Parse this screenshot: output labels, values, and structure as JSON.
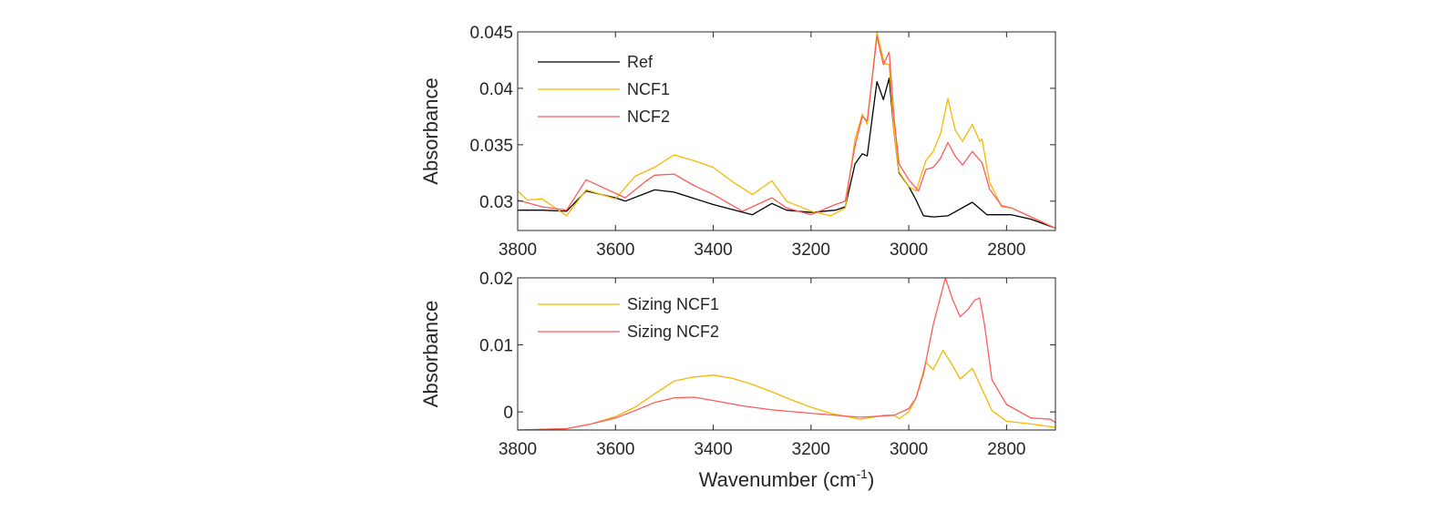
{
  "chart_data": [
    {
      "type": "line",
      "xlabel": "",
      "ylabel": "Absorbance",
      "xlim": [
        3800,
        2700
      ],
      "x_reversed": true,
      "ylim": [
        0.0274,
        0.045
      ],
      "xticks": [
        3800,
        3600,
        3400,
        3200,
        3000,
        2800
      ],
      "xtick_labels": [
        "3800",
        "3600",
        "3400",
        "3200",
        "3000",
        "2800"
      ],
      "yticks": [
        0.03,
        0.035,
        0.04,
        0.045
      ],
      "ytick_labels": [
        "0.03",
        "0.035",
        "0.04",
        "0.045"
      ],
      "grid": false,
      "legend_placement": "top-left",
      "series": [
        {
          "name": "Ref",
          "color": "#000000",
          "x": [
            3800,
            3750,
            3700,
            3660,
            3600,
            3580,
            3520,
            3480,
            3400,
            3320,
            3280,
            3250,
            3200,
            3150,
            3130,
            3110,
            3095,
            3085,
            3065,
            3052,
            3040,
            3030,
            3020,
            3000,
            2985,
            2970,
            2950,
            2920,
            2870,
            2840,
            2790,
            2750,
            2700
          ],
          "y": [
            0.0292,
            0.0292,
            0.0291,
            0.0309,
            0.0303,
            0.03,
            0.031,
            0.0308,
            0.0297,
            0.0288,
            0.0298,
            0.0292,
            0.029,
            0.0292,
            0.0295,
            0.0333,
            0.0342,
            0.034,
            0.0406,
            0.039,
            0.0409,
            0.036,
            0.0325,
            0.0313,
            0.0301,
            0.0287,
            0.0286,
            0.0287,
            0.0299,
            0.0288,
            0.0288,
            0.0284,
            0.0276
          ]
        },
        {
          "name": "NCF1",
          "color": "#F5B800",
          "x": [
            3800,
            3780,
            3750,
            3700,
            3660,
            3600,
            3560,
            3520,
            3480,
            3440,
            3400,
            3360,
            3320,
            3280,
            3250,
            3200,
            3160,
            3130,
            3110,
            3095,
            3085,
            3065,
            3050,
            3040,
            3030,
            3020,
            3000,
            2985,
            2965,
            2950,
            2935,
            2920,
            2905,
            2890,
            2870,
            2855,
            2850,
            2835,
            2810,
            2790,
            2750,
            2700
          ],
          "y": [
            0.0309,
            0.0301,
            0.0302,
            0.0287,
            0.031,
            0.0302,
            0.0322,
            0.033,
            0.0341,
            0.0336,
            0.033,
            0.0317,
            0.0306,
            0.0318,
            0.03,
            0.0291,
            0.0287,
            0.0294,
            0.0355,
            0.0377,
            0.0368,
            0.045,
            0.0422,
            0.0421,
            0.036,
            0.0326,
            0.0313,
            0.0309,
            0.0336,
            0.0344,
            0.036,
            0.0391,
            0.0363,
            0.0353,
            0.0368,
            0.0353,
            0.0355,
            0.0317,
            0.0295,
            0.0294,
            0.0286,
            0.0276
          ]
        },
        {
          "name": "NCF2",
          "color": "#FF5A5A",
          "x": [
            3800,
            3750,
            3700,
            3660,
            3620,
            3580,
            3540,
            3520,
            3480,
            3440,
            3400,
            3340,
            3280,
            3250,
            3200,
            3150,
            3130,
            3110,
            3095,
            3085,
            3065,
            3052,
            3040,
            3030,
            3020,
            3000,
            2980,
            2965,
            2950,
            2935,
            2920,
            2905,
            2890,
            2870,
            2850,
            2835,
            2810,
            2790,
            2750,
            2700
          ],
          "y": [
            0.0301,
            0.0295,
            0.0292,
            0.0319,
            0.0311,
            0.0303,
            0.0317,
            0.0323,
            0.0324,
            0.0314,
            0.0306,
            0.0291,
            0.0303,
            0.0294,
            0.0288,
            0.0297,
            0.03,
            0.0349,
            0.0375,
            0.0371,
            0.0446,
            0.0421,
            0.0432,
            0.0373,
            0.0333,
            0.0319,
            0.0309,
            0.0328,
            0.033,
            0.0338,
            0.0352,
            0.034,
            0.0332,
            0.0344,
            0.0334,
            0.0311,
            0.0296,
            0.0294,
            0.0286,
            0.0276
          ]
        }
      ]
    },
    {
      "type": "line",
      "xlabel": "Wavenumber (cm",
      "xlabel_superscript": "-1",
      "xlabel_suffix": ")",
      "ylabel": "Absorbance",
      "xlim": [
        3800,
        2700
      ],
      "x_reversed": true,
      "ylim": [
        -0.0027,
        0.02
      ],
      "xticks": [
        3800,
        3600,
        3400,
        3200,
        3000,
        2800
      ],
      "xtick_labels": [
        "3800",
        "3600",
        "3400",
        "3200",
        "3000",
        "2800"
      ],
      "yticks": [
        0,
        0.01,
        0.02
      ],
      "ytick_labels": [
        "0",
        "0.01",
        "0.02"
      ],
      "grid": false,
      "legend_placement": "top-left",
      "series": [
        {
          "name": "Sizing NCF1",
          "color": "#F5B800",
          "x": [
            3800,
            3700,
            3650,
            3600,
            3560,
            3520,
            3480,
            3440,
            3400,
            3360,
            3320,
            3280,
            3240,
            3200,
            3160,
            3100,
            3050,
            3030,
            3020,
            3000,
            2985,
            2965,
            2950,
            2930,
            2915,
            2895,
            2870,
            2850,
            2830,
            2800,
            2750,
            2700
          ],
          "y": [
            -0.0027,
            -0.0025,
            -0.0018,
            -0.0007,
            0.0007,
            0.0027,
            0.0046,
            0.0052,
            0.0055,
            0.005,
            0.0041,
            0.003,
            0.0018,
            0.0007,
            -0.0002,
            -0.0011,
            -0.0005,
            -0.0005,
            -0.001,
            0.0,
            0.0021,
            0.0074,
            0.0063,
            0.0092,
            0.0075,
            0.0049,
            0.0065,
            0.0034,
            0.0002,
            -0.0014,
            -0.0018,
            -0.0023
          ]
        },
        {
          "name": "Sizing NCF2",
          "color": "#FF5A5A",
          "x": [
            3800,
            3700,
            3650,
            3600,
            3560,
            3520,
            3480,
            3440,
            3400,
            3340,
            3280,
            3200,
            3100,
            3030,
            3000,
            2985,
            2970,
            2950,
            2925,
            2910,
            2895,
            2880,
            2865,
            2855,
            2845,
            2830,
            2800,
            2750,
            2710,
            2700
          ],
          "y": [
            -0.0027,
            -0.0025,
            -0.0018,
            -0.0009,
            0.0002,
            0.0014,
            0.0021,
            0.0022,
            0.0017,
            0.0009,
            0.0003,
            -0.0002,
            -0.0008,
            -0.0005,
            0.0005,
            0.0021,
            0.0057,
            0.013,
            0.02,
            0.0167,
            0.0142,
            0.0152,
            0.0167,
            0.017,
            0.013,
            0.0048,
            0.0011,
            -0.0009,
            -0.0011,
            -0.0016
          ]
        }
      ]
    }
  ]
}
